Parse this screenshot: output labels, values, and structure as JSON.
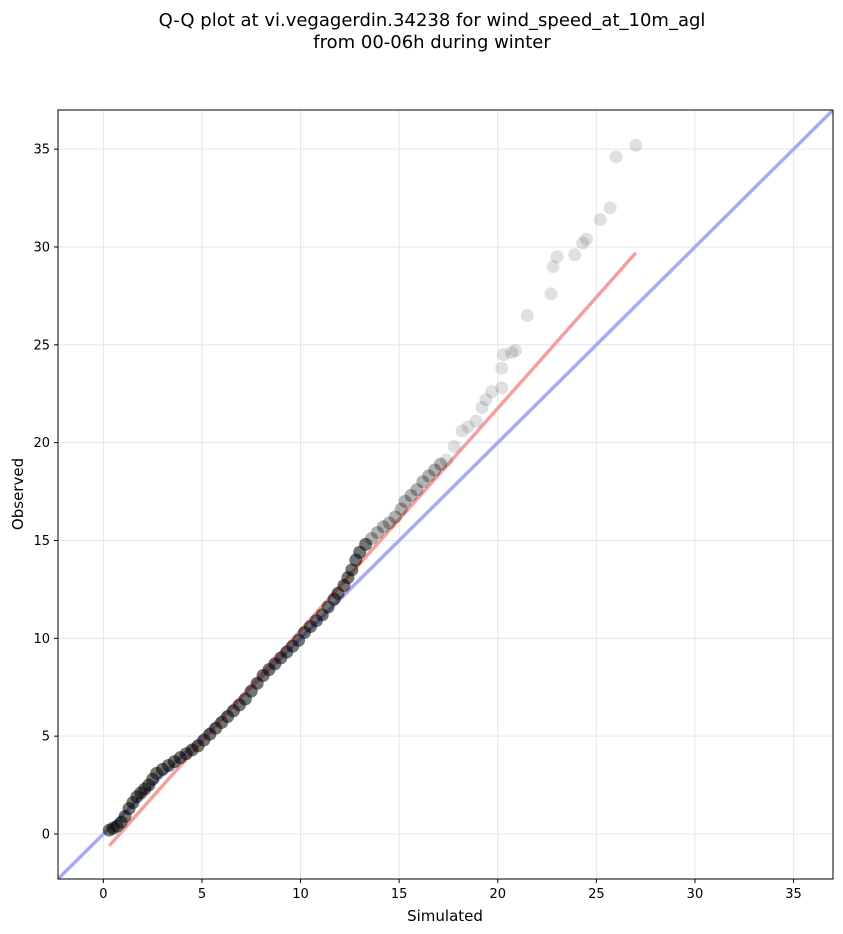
{
  "chart_data": {
    "type": "scatter",
    "title": [
      "Q-Q plot at vi.vegagerdin.34238 for wind_speed_at_10m_agl",
      "from 00-06h during winter"
    ],
    "xlabel": "Simulated",
    "ylabel": "Observed",
    "xlim": [
      -2.3,
      37.0
    ],
    "ylim": [
      -2.3,
      37.0
    ],
    "xticks": [
      0,
      5,
      10,
      15,
      20,
      25,
      30,
      35
    ],
    "yticks": [
      0,
      5,
      10,
      15,
      20,
      25,
      30,
      35
    ],
    "grid": true,
    "colors": {
      "points": "#000000",
      "fit_line": "#f4a0a0",
      "identity_line": "#a9abf2",
      "grid": "#e6e6e6"
    },
    "lines": [
      {
        "kind": "identity",
        "points": [
          [
            -2.3,
            -2.3
          ],
          [
            37.0,
            37.0
          ]
        ]
      },
      {
        "kind": "fit",
        "points": [
          [
            0.3,
            -0.6
          ],
          [
            27.0,
            29.7
          ]
        ]
      }
    ],
    "points": [
      [
        0.3,
        0.2
      ],
      [
        0.5,
        0.3
      ],
      [
        0.7,
        0.4
      ],
      [
        0.9,
        0.6
      ],
      [
        1.1,
        0.9
      ],
      [
        1.3,
        1.3
      ],
      [
        1.5,
        1.6
      ],
      [
        1.7,
        1.9
      ],
      [
        1.9,
        2.1
      ],
      [
        2.1,
        2.3
      ],
      [
        2.3,
        2.5
      ],
      [
        2.5,
        2.8
      ],
      [
        2.7,
        3.1
      ],
      [
        3.0,
        3.3
      ],
      [
        3.3,
        3.5
      ],
      [
        3.6,
        3.7
      ],
      [
        3.9,
        3.9
      ],
      [
        4.2,
        4.1
      ],
      [
        4.5,
        4.3
      ],
      [
        4.8,
        4.5
      ],
      [
        5.1,
        4.8
      ],
      [
        5.4,
        5.1
      ],
      [
        5.7,
        5.4
      ],
      [
        6.0,
        5.7
      ],
      [
        6.3,
        6.0
      ],
      [
        6.6,
        6.3
      ],
      [
        6.9,
        6.6
      ],
      [
        7.2,
        6.9
      ],
      [
        7.5,
        7.3
      ],
      [
        7.8,
        7.7
      ],
      [
        8.1,
        8.1
      ],
      [
        8.4,
        8.4
      ],
      [
        8.7,
        8.7
      ],
      [
        9.0,
        9.0
      ],
      [
        9.3,
        9.3
      ],
      [
        9.6,
        9.6
      ],
      [
        9.9,
        9.9
      ],
      [
        10.2,
        10.3
      ],
      [
        10.5,
        10.6
      ],
      [
        10.8,
        10.9
      ],
      [
        11.1,
        11.2
      ],
      [
        11.4,
        11.6
      ],
      [
        11.7,
        12.0
      ],
      [
        11.9,
        12.3
      ],
      [
        12.2,
        12.7
      ],
      [
        12.4,
        13.1
      ],
      [
        12.6,
        13.5
      ],
      [
        12.8,
        14.0
      ],
      [
        13.0,
        14.4
      ],
      [
        13.3,
        14.8
      ],
      [
        13.6,
        15.1
      ],
      [
        13.9,
        15.4
      ],
      [
        14.2,
        15.7
      ],
      [
        14.5,
        15.9
      ],
      [
        14.8,
        16.2
      ],
      [
        15.1,
        16.6
      ],
      [
        15.3,
        17.0
      ],
      [
        15.6,
        17.3
      ],
      [
        15.9,
        17.6
      ],
      [
        16.2,
        18.0
      ],
      [
        16.5,
        18.3
      ],
      [
        16.8,
        18.6
      ],
      [
        17.1,
        18.9
      ],
      [
        17.4,
        19.1
      ],
      [
        17.8,
        19.8
      ],
      [
        18.2,
        20.6
      ],
      [
        18.5,
        20.8
      ],
      [
        18.9,
        21.1
      ],
      [
        19.2,
        21.8
      ],
      [
        19.4,
        22.2
      ],
      [
        19.7,
        22.6
      ],
      [
        20.2,
        22.8
      ],
      [
        20.2,
        23.8
      ],
      [
        20.3,
        24.5
      ],
      [
        20.7,
        24.6
      ],
      [
        20.9,
        24.7
      ],
      [
        21.5,
        26.5
      ],
      [
        22.7,
        27.6
      ],
      [
        22.8,
        29.0
      ],
      [
        23.0,
        29.5
      ],
      [
        23.9,
        29.6
      ],
      [
        24.3,
        30.2
      ],
      [
        24.5,
        30.4
      ],
      [
        25.2,
        31.4
      ],
      [
        25.7,
        32.0
      ],
      [
        26.0,
        34.6
      ],
      [
        27.0,
        35.2
      ]
    ]
  }
}
